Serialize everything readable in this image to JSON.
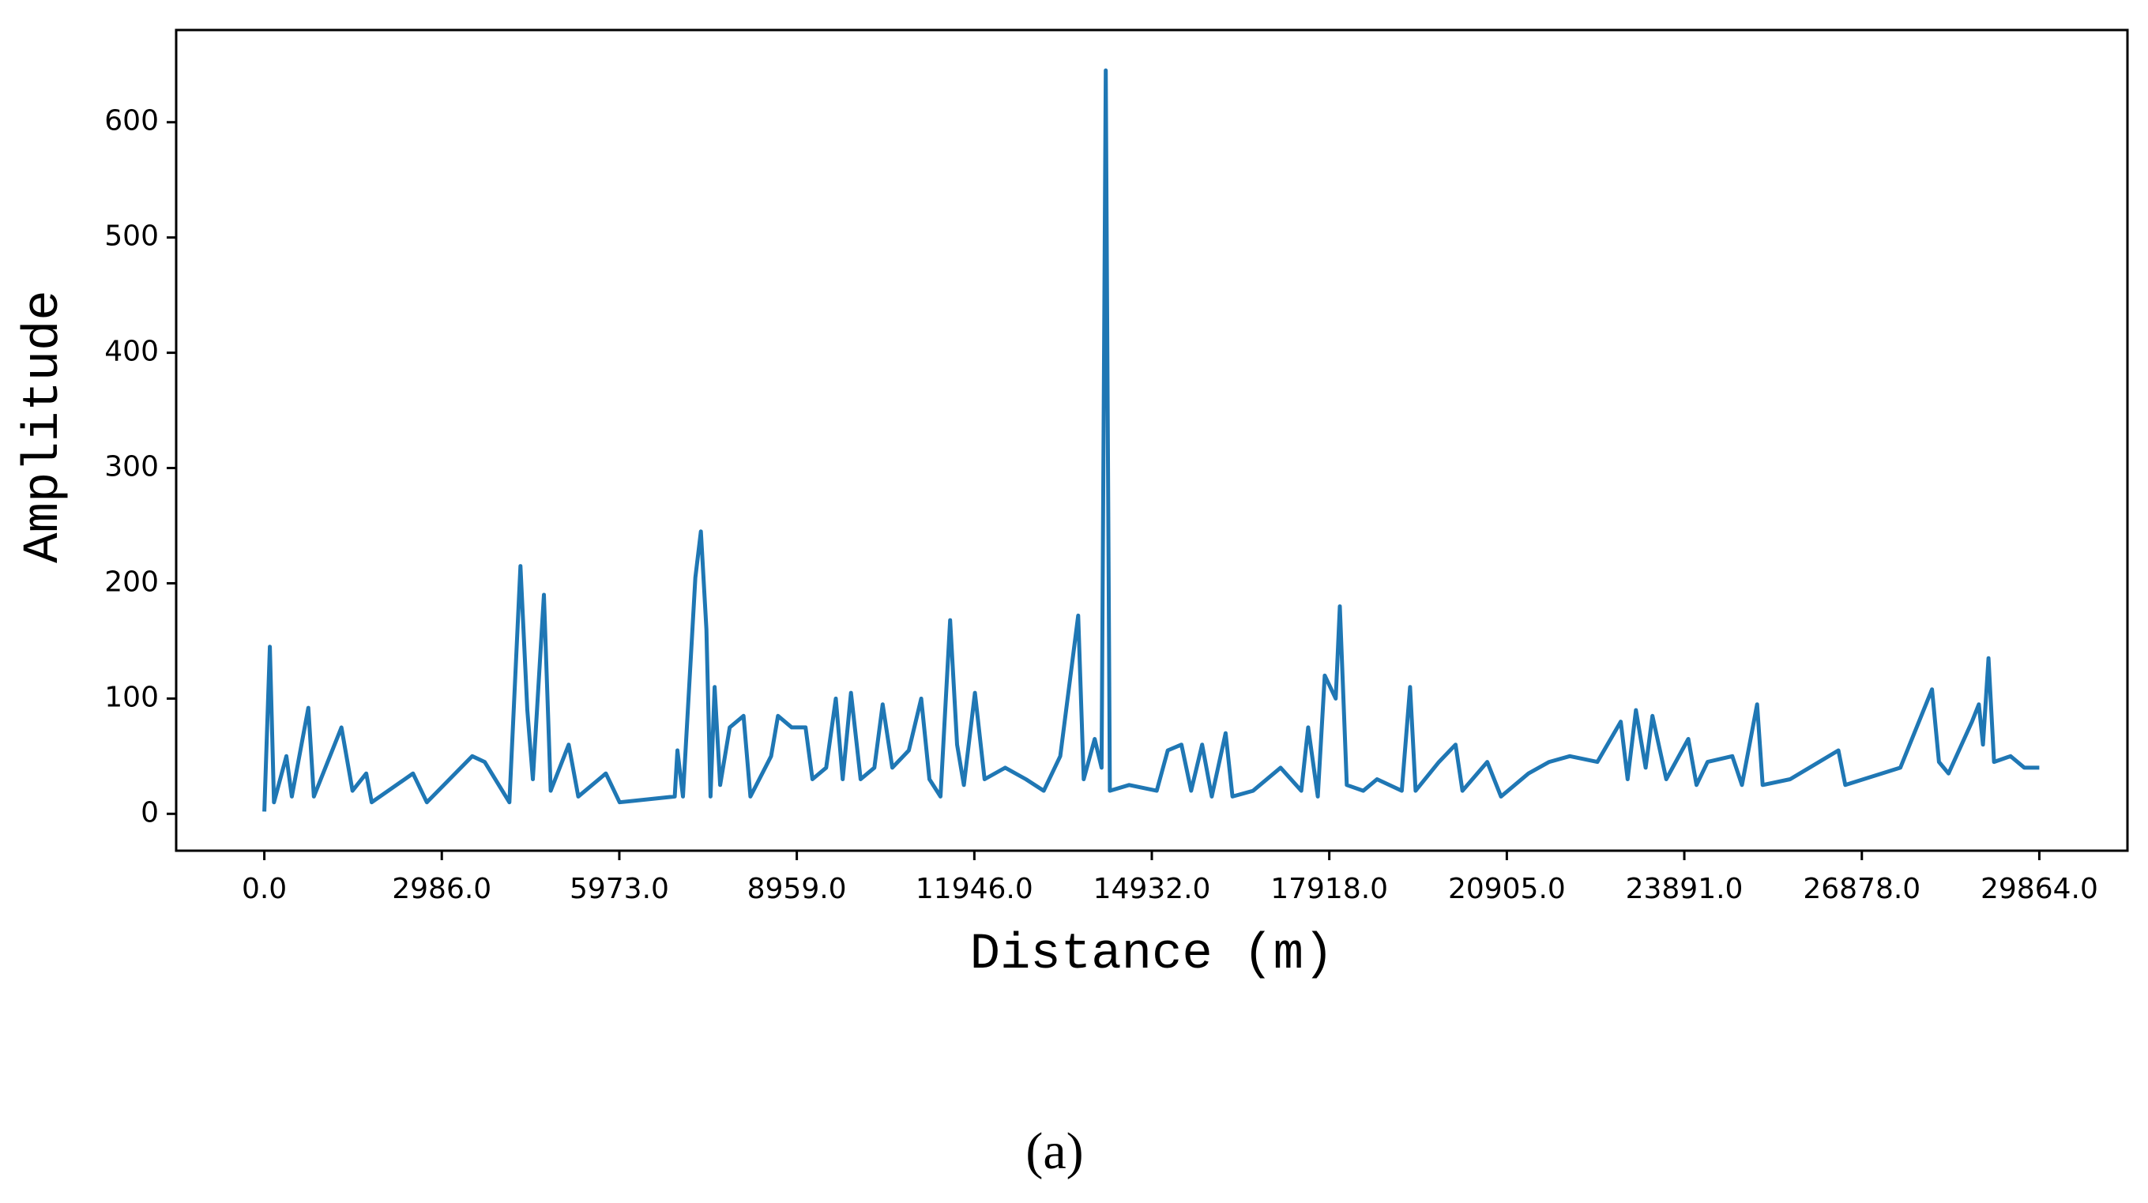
{
  "chart_data": {
    "type": "line",
    "x_label": "Distance (m)",
    "y_label": "Amplitude",
    "caption": "(a)",
    "xlim": [
      -1483,
      31347
    ],
    "ylim": [
      -32,
      680
    ],
    "xticks": [
      {
        "value": 0,
        "label": "0.0"
      },
      {
        "value": 2986,
        "label": "2986.0"
      },
      {
        "value": 5973,
        "label": "5973.0"
      },
      {
        "value": 8959,
        "label": "8959.0"
      },
      {
        "value": 11946,
        "label": "11946.0"
      },
      {
        "value": 14932,
        "label": "14932.0"
      },
      {
        "value": 17918,
        "label": "17918.0"
      },
      {
        "value": 20905,
        "label": "20905.0"
      },
      {
        "value": 23891,
        "label": "23891.0"
      },
      {
        "value": 26878,
        "label": "26878.0"
      },
      {
        "value": 29864,
        "label": "29864.0"
      }
    ],
    "yticks": [
      0,
      100,
      200,
      300,
      400,
      500,
      600
    ],
    "series": [
      {
        "name": "Amplitude",
        "color": "#1f77b4",
        "x": [
          0,
          93,
          162,
          371,
          463,
          741,
          834,
          1297,
          1483,
          1715,
          1807,
          2502,
          2734,
          3499,
          3707,
          4124,
          4310,
          4425,
          4518,
          4704,
          4819,
          5121,
          5283,
          5746,
          5978,
          6905,
          6951,
          7044,
          7252,
          7345,
          7438,
          7507,
          7577,
          7669,
          7831,
          8063,
          8179,
          8527,
          8642,
          8874,
          9106,
          9222,
          9453,
          9616,
          9731,
          9870,
          10033,
          10264,
          10403,
          10566,
          10844,
          11052,
          11191,
          11376,
          11539,
          11655,
          11770,
          11956,
          12118,
          12465,
          12813,
          13114,
          13392,
          13693,
          13786,
          13971,
          14087,
          14157,
          14226,
          14551,
          15014,
          15200,
          15431,
          15594,
          15779,
          15941,
          16173,
          16289,
          16636,
          17099,
          17447,
          17563,
          17725,
          17841,
          18026,
          18096,
          18212,
          18490,
          18721,
          19138,
          19277,
          19370,
          19764,
          19949,
          20042,
          20158,
          20575,
          20807,
          21270,
          21618,
          21965,
          22429,
          22822,
          22938,
          23077,
          23240,
          23355,
          23587,
          23958,
          24097,
          24282,
          24699,
          24861,
          25116,
          25209,
          25672,
          26483,
          26599,
          27526,
          28059,
          28175,
          28337,
          28731,
          28847,
          28916,
          29009,
          29102,
          29380,
          29612,
          29864
        ],
        "values": [
          2,
          145,
          10,
          50,
          15,
          92,
          15,
          75,
          20,
          35,
          10,
          35,
          10,
          50,
          45,
          10,
          215,
          90,
          30,
          190,
          20,
          60,
          15,
          35,
          10,
          15,
          55,
          15,
          205,
          245,
          160,
          15,
          110,
          25,
          75,
          85,
          15,
          50,
          85,
          75,
          75,
          30,
          40,
          100,
          30,
          105,
          30,
          40,
          95,
          40,
          55,
          100,
          30,
          15,
          168,
          60,
          25,
          105,
          30,
          40,
          30,
          20,
          50,
          172,
          30,
          65,
          40,
          645,
          20,
          25,
          20,
          55,
          60,
          20,
          60,
          15,
          70,
          15,
          20,
          40,
          20,
          75,
          15,
          120,
          100,
          180,
          25,
          20,
          30,
          20,
          110,
          20,
          45,
          55,
          60,
          20,
          45,
          15,
          35,
          45,
          50,
          45,
          80,
          30,
          90,
          40,
          85,
          30,
          65,
          25,
          45,
          50,
          25,
          95,
          25,
          30,
          55,
          25,
          40,
          108,
          45,
          35,
          80,
          95,
          60,
          135,
          45,
          50,
          40,
          40
        ]
      }
    ]
  }
}
